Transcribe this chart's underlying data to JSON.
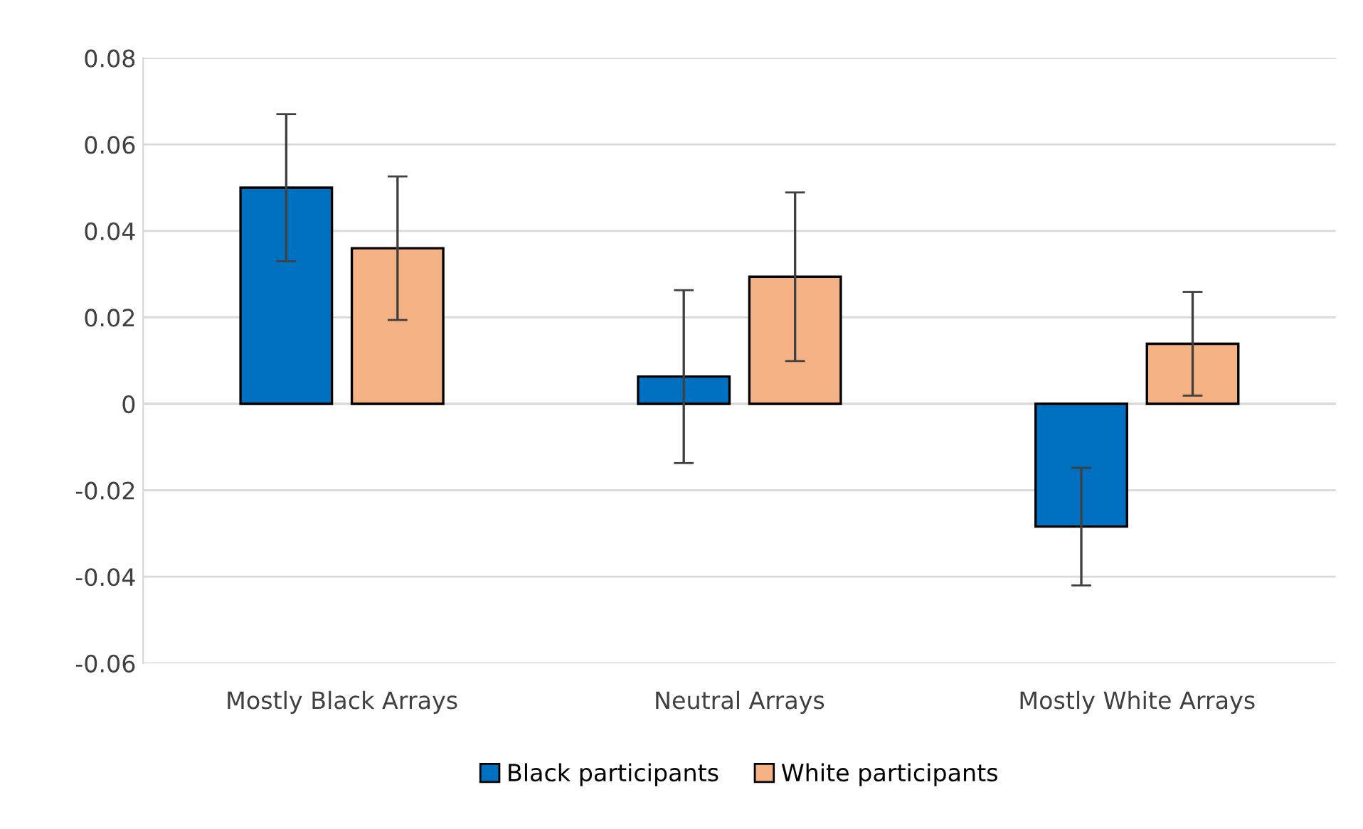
{
  "chart_data": {
    "type": "bar",
    "categories": [
      "Mostly Black Arrays",
      "Neutral Arrays",
      "Mostly White Arrays"
    ],
    "series": [
      {
        "name": "Black participants",
        "color": "#0070c0",
        "values": [
          0.05,
          0.0063,
          -0.0284
        ],
        "errors": [
          0.017,
          0.02,
          0.0136
        ]
      },
      {
        "name": "White participants",
        "color": "#f4b183",
        "values": [
          0.036,
          0.0294,
          0.0139
        ],
        "errors": [
          0.0166,
          0.0195,
          0.012
        ]
      }
    ],
    "ylim": [
      -0.06,
      0.08
    ],
    "yticks": [
      {
        "value": -0.06,
        "label": "-0.06"
      },
      {
        "value": -0.04,
        "label": "-0.04"
      },
      {
        "value": -0.02,
        "label": "-0.02"
      },
      0,
      0.02,
      0.04,
      0.06,
      0.08
    ],
    "grid": "y",
    "legend": "bottom"
  }
}
